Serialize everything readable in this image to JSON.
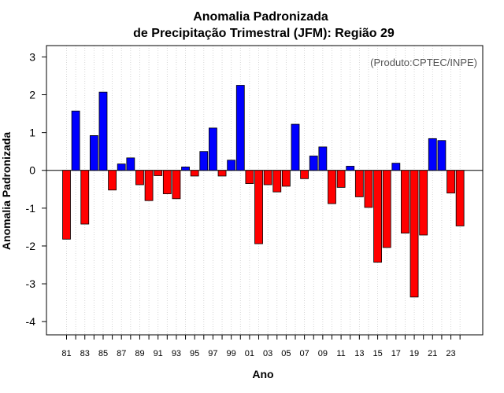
{
  "chart_data": {
    "type": "bar",
    "title": "Anomalia Padronizada",
    "subtitle": "de Precipitação Trimestral (JFM): Região 29",
    "xlabel": "Ano",
    "ylabel": "Anomalia Padronizada",
    "annotation": "(Produto:CPTEC/INPE)",
    "ylim": [
      -4.35,
      3.3
    ],
    "yticks": [
      -4,
      -3,
      -2,
      -1,
      0,
      1,
      2,
      3
    ],
    "ytick_labels": [
      "-4",
      "-3",
      "-2",
      "-1",
      "0",
      "1",
      "2",
      "3"
    ],
    "grid": true,
    "positive_color": "#0000ff",
    "negative_color": "#ff0000",
    "categories": [
      "1981",
      "1982",
      "1983",
      "1984",
      "1985",
      "1986",
      "1987",
      "1988",
      "1989",
      "1990",
      "1991",
      "1992",
      "1993",
      "1994",
      "1995",
      "1996",
      "1997",
      "1998",
      "1999",
      "2000",
      "2001",
      "2002",
      "2003",
      "2004",
      "2005",
      "2006",
      "2007",
      "2008",
      "2009",
      "2010",
      "2011",
      "2012",
      "2013",
      "2014",
      "2015",
      "2016",
      "2017",
      "2018",
      "2019",
      "2020",
      "2021",
      "2022",
      "2023",
      "2024"
    ],
    "values": [
      -1.82,
      1.57,
      -1.42,
      0.92,
      2.07,
      -0.52,
      0.17,
      0.33,
      -0.38,
      -0.8,
      -0.14,
      -0.62,
      -0.75,
      0.09,
      -0.15,
      0.5,
      1.12,
      -0.15,
      0.27,
      2.25,
      -0.35,
      -1.94,
      -0.38,
      -0.57,
      -0.42,
      1.22,
      -0.22,
      0.38,
      0.62,
      -0.88,
      -0.45,
      0.11,
      -0.7,
      -0.98,
      -2.43,
      -2.04,
      0.19,
      -1.66,
      -3.35,
      -1.71,
      0.84,
      0.79,
      -0.6,
      -1.47
    ],
    "xtick_labels": [
      "81",
      "83",
      "85",
      "87",
      "89",
      "91",
      "93",
      "95",
      "97",
      "99",
      "01",
      "03",
      "05",
      "07",
      "09",
      "11",
      "13",
      "15",
      "17",
      "19",
      "21",
      "23"
    ]
  }
}
